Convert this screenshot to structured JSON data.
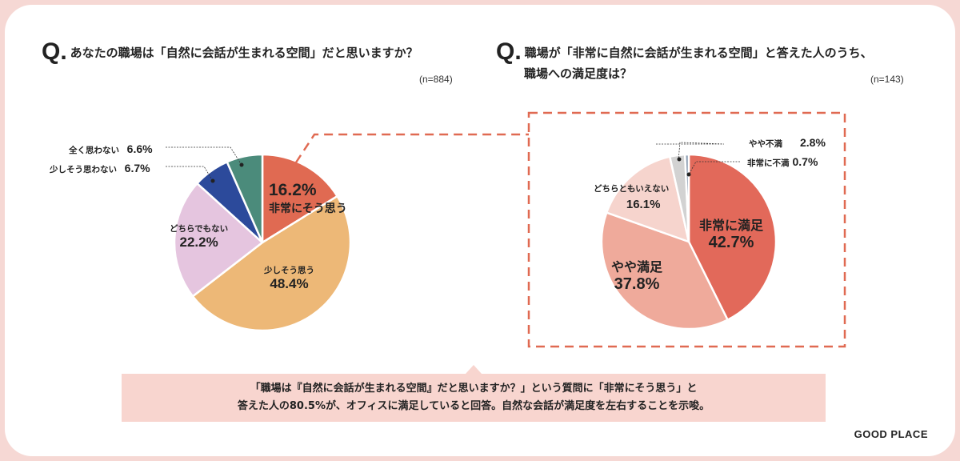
{
  "chart_data": [
    {
      "type": "pie",
      "title": "あなたの職場は「自然に会話が生まれる空間」だと思いますか？",
      "n_label": "(n=884)",
      "slices": [
        {
          "label": "非常にそう思う",
          "value": 16.2,
          "display": "16.2%",
          "color": "#e06a52"
        },
        {
          "label": "少しそう思う",
          "value": 48.4,
          "display": "48.4%",
          "color": "#edb877"
        },
        {
          "label": "どちらでもない",
          "value": 22.2,
          "display": "22.2%",
          "color": "#e5c5df"
        },
        {
          "label": "少しそう思わない",
          "value": 6.7,
          "display": "6.7%",
          "color": "#2c4a9b"
        },
        {
          "label": "全く思わない",
          "value": 6.6,
          "display": "6.6%",
          "color": "#4b8b7b"
        }
      ]
    },
    {
      "type": "pie",
      "title_line1": "職場が「非常に自然に会話が生まれる空間」と答えた人のうち、",
      "title_line2": "職場への満足度は？",
      "n_label": "(n=143)",
      "slices": [
        {
          "label": "非常に満足",
          "value": 42.7,
          "display": "42.7%",
          "color": "#e2695a"
        },
        {
          "label": "やや満足",
          "value": 37.8,
          "display": "37.8%",
          "color": "#efaa9b"
        },
        {
          "label": "どちらともいえない",
          "value": 16.1,
          "display": "16.1%",
          "color": "#f6d4cd"
        },
        {
          "label": "やや不満",
          "value": 2.8,
          "display": "2.8%",
          "color": "#d2d2d2"
        },
        {
          "label": "非常に不満",
          "value": 0.7,
          "display": "0.7%",
          "color": "#8b9db2"
        }
      ]
    }
  ],
  "q_mark": "Q.",
  "callout": {
    "line1": "「職場は『自然に会話が生まれる空間』だと思いますか？」という質問に「非常にそう思う」と",
    "line2": "答えた人の80.5%が、オフィスに満足していると回答。自然な会話が満足度を左右することを示唆。"
  },
  "logo": "GOOD PLACE",
  "accent": "#e06a52"
}
